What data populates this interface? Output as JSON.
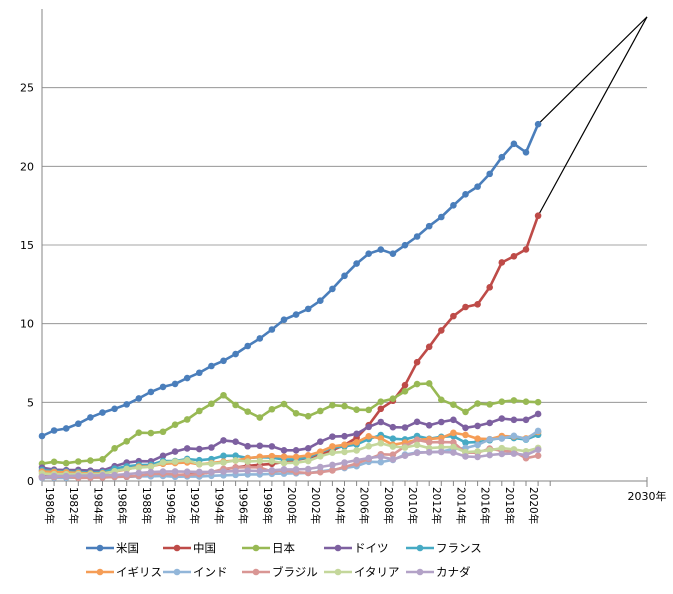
{
  "chart_data": {
    "type": "line",
    "title": "",
    "xlabel": "",
    "ylabel": "",
    "ylim": [
      0,
      30
    ],
    "yticks": [
      0,
      5,
      10,
      15,
      20,
      25
    ],
    "grid": "horizontal",
    "legend_position": "bottom",
    "x": [
      1980,
      1981,
      1982,
      1983,
      1984,
      1985,
      1986,
      1987,
      1988,
      1989,
      1990,
      1991,
      1992,
      1993,
      1994,
      1995,
      1996,
      1997,
      1998,
      1999,
      2000,
      2001,
      2002,
      2003,
      2004,
      2005,
      2006,
      2007,
      2008,
      2009,
      2010,
      2011,
      2012,
      2013,
      2014,
      2015,
      2016,
      2017,
      2018,
      2019,
      2020,
      2021
    ],
    "x_tick_labels": [
      "1980年",
      "1982年",
      "1984年",
      "1986年",
      "1988年",
      "1990年",
      "1992年",
      "1994年",
      "1996年",
      "1998年",
      "2000年",
      "2002年",
      "2004年",
      "2006年",
      "2008年",
      "2010年",
      "2012年",
      "2014年",
      "2016年",
      "2018年",
      "2020年"
    ],
    "projection_label": "2030年",
    "projection_x": 2030,
    "projection_y": 29.5,
    "series": [
      {
        "name": "米国",
        "color": "#4a7ebb",
        "values": [
          2.86,
          3.21,
          3.34,
          3.64,
          4.04,
          4.35,
          4.59,
          4.87,
          5.25,
          5.66,
          5.98,
          6.17,
          6.54,
          6.88,
          7.31,
          7.64,
          8.07,
          8.58,
          9.06,
          9.63,
          10.25,
          10.58,
          10.94,
          11.46,
          12.21,
          13.04,
          13.82,
          14.45,
          14.71,
          14.45,
          14.99,
          15.54,
          16.2,
          16.78,
          17.52,
          18.22,
          18.71,
          19.52,
          20.58,
          21.43,
          20.89,
          22.68
        ]
      },
      {
        "name": "中国",
        "color": "#be4b48",
        "values": [
          0.3,
          0.29,
          0.28,
          0.3,
          0.31,
          0.31,
          0.3,
          0.27,
          0.31,
          0.35,
          0.36,
          0.38,
          0.42,
          0.44,
          0.56,
          0.73,
          0.86,
          0.96,
          1.03,
          1.09,
          1.21,
          1.34,
          1.47,
          1.66,
          1.96,
          2.29,
          2.75,
          3.55,
          4.59,
          5.1,
          6.09,
          7.55,
          8.53,
          9.57,
          10.48,
          11.06,
          11.23,
          12.31,
          13.89,
          14.28,
          14.72,
          16.86
        ]
      },
      {
        "name": "日本",
        "color": "#98b954",
        "values": [
          1.1,
          1.22,
          1.13,
          1.24,
          1.3,
          1.38,
          2.08,
          2.52,
          3.07,
          3.05,
          3.13,
          3.58,
          3.91,
          4.45,
          4.91,
          5.45,
          4.83,
          4.41,
          4.03,
          4.56,
          4.89,
          4.3,
          4.12,
          4.45,
          4.82,
          4.76,
          4.53,
          4.52,
          5.04,
          5.23,
          5.7,
          6.16,
          6.2,
          5.16,
          4.85,
          4.39,
          4.92,
          4.87,
          5.04,
          5.12,
          5.04,
          5.01
        ]
      },
      {
        "name": "ドイツ",
        "color": "#7d60a0",
        "values": [
          0.85,
          0.72,
          0.69,
          0.7,
          0.66,
          0.66,
          0.94,
          1.17,
          1.26,
          1.25,
          1.6,
          1.87,
          2.07,
          2.03,
          2.13,
          2.58,
          2.5,
          2.21,
          2.24,
          2.2,
          1.95,
          1.95,
          2.08,
          2.5,
          2.82,
          2.85,
          3.0,
          3.44,
          3.75,
          3.42,
          3.4,
          3.76,
          3.54,
          3.75,
          3.89,
          3.38,
          3.5,
          3.69,
          3.97,
          3.89,
          3.89,
          4.26
        ]
      },
      {
        "name": "フランス",
        "color": "#46aac4",
        "values": [
          0.7,
          0.62,
          0.6,
          0.57,
          0.53,
          0.55,
          0.78,
          0.93,
          1.02,
          1.03,
          1.27,
          1.27,
          1.4,
          1.32,
          1.39,
          1.6,
          1.61,
          1.46,
          1.51,
          1.49,
          1.36,
          1.38,
          1.5,
          1.84,
          2.12,
          2.2,
          2.32,
          2.66,
          2.92,
          2.69,
          2.64,
          2.86,
          2.68,
          2.81,
          2.85,
          2.44,
          2.47,
          2.59,
          2.79,
          2.73,
          2.63,
          2.94
        ]
      },
      {
        "name": "イギリス",
        "color": "#f59d56",
        "values": [
          0.6,
          0.58,
          0.55,
          0.51,
          0.48,
          0.49,
          0.6,
          0.74,
          0.91,
          0.93,
          1.09,
          1.14,
          1.18,
          1.06,
          1.14,
          1.23,
          1.3,
          1.45,
          1.54,
          1.58,
          1.55,
          1.53,
          1.63,
          1.86,
          2.2,
          2.3,
          2.46,
          2.84,
          2.71,
          2.3,
          2.44,
          2.62,
          2.66,
          2.74,
          3.06,
          2.93,
          2.69,
          2.66,
          2.86,
          2.83,
          2.71,
          3.12
        ]
      },
      {
        "name": "インド",
        "color": "#92b6d9",
        "values": [
          0.19,
          0.2,
          0.2,
          0.22,
          0.22,
          0.23,
          0.25,
          0.28,
          0.3,
          0.3,
          0.32,
          0.27,
          0.29,
          0.28,
          0.33,
          0.36,
          0.39,
          0.42,
          0.42,
          0.46,
          0.47,
          0.49,
          0.51,
          0.61,
          0.71,
          0.82,
          0.94,
          1.22,
          1.2,
          1.34,
          1.68,
          1.82,
          1.83,
          1.86,
          2.04,
          2.1,
          2.29,
          2.65,
          2.7,
          2.87,
          2.66,
          3.18
        ]
      },
      {
        "name": "ブラジル",
        "color": "#d99694",
        "values": [
          0.24,
          0.26,
          0.28,
          0.2,
          0.21,
          0.22,
          0.26,
          0.29,
          0.33,
          0.45,
          0.46,
          0.41,
          0.39,
          0.44,
          0.56,
          0.77,
          0.85,
          0.88,
          0.86,
          0.6,
          0.66,
          0.56,
          0.51,
          0.56,
          0.67,
          0.89,
          1.11,
          1.4,
          1.7,
          1.67,
          2.21,
          2.62,
          2.46,
          2.47,
          2.46,
          1.8,
          1.8,
          2.06,
          1.92,
          1.87,
          1.45,
          1.61
        ]
      },
      {
        "name": "イタリア",
        "color": "#c4d79b",
        "values": [
          0.48,
          0.43,
          0.43,
          0.44,
          0.43,
          0.45,
          0.62,
          0.77,
          0.85,
          0.9,
          1.18,
          1.24,
          1.32,
          1.07,
          1.1,
          1.17,
          1.31,
          1.24,
          1.27,
          1.25,
          1.14,
          1.16,
          1.27,
          1.57,
          1.8,
          1.85,
          1.94,
          2.21,
          2.4,
          2.19,
          2.13,
          2.29,
          2.09,
          2.14,
          2.16,
          1.84,
          1.88,
          1.96,
          2.09,
          2.01,
          1.89,
          2.1
        ]
      },
      {
        "name": "カナダ",
        "color": "#b3a2c7",
        "values": [
          0.27,
          0.31,
          0.31,
          0.34,
          0.35,
          0.36,
          0.38,
          0.43,
          0.51,
          0.57,
          0.6,
          0.61,
          0.59,
          0.58,
          0.58,
          0.6,
          0.63,
          0.66,
          0.63,
          0.68,
          0.74,
          0.74,
          0.76,
          0.89,
          1.02,
          1.17,
          1.32,
          1.46,
          1.55,
          1.37,
          1.61,
          1.79,
          1.83,
          1.85,
          1.81,
          1.56,
          1.53,
          1.65,
          1.72,
          1.74,
          1.65,
          1.99
        ]
      }
    ]
  }
}
